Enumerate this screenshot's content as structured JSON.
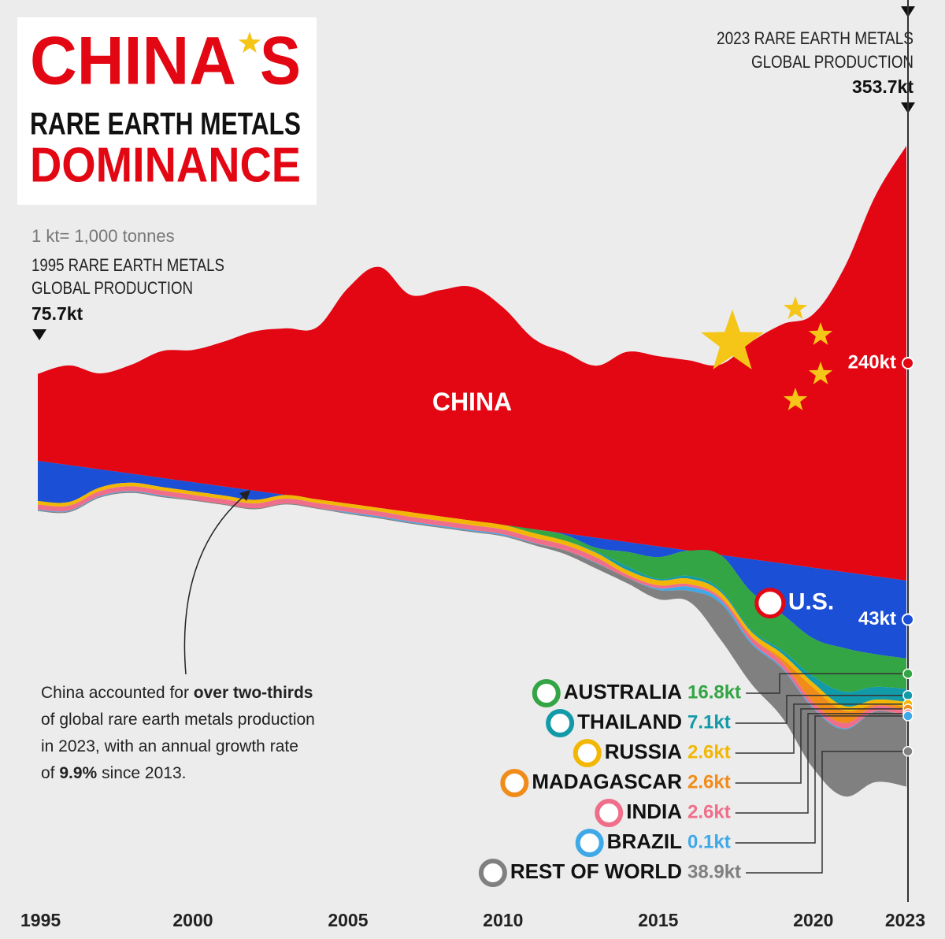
{
  "title": {
    "line1_a": "CHINA",
    "line1_b": "S",
    "line2": "RARE EARTH METALS",
    "line3": "DOMINANCE"
  },
  "annotations": {
    "unit_note": "1 kt= 1,000 tonnes",
    "start_line1": "1995 RARE EARTH METALS",
    "start_line2": "GLOBAL PRODUCTION",
    "start_total": "75.7kt",
    "end_line1": "2023 RARE EARTH METALS",
    "end_line2": "GLOBAL PRODUCTION",
    "end_total": "353.7kt",
    "note": [
      [
        {
          "text": "China accounted for ",
          "bold": false
        },
        {
          "text": "over two-thirds",
          "bold": true
        }
      ],
      [
        {
          "text": "of global rare earth metals production",
          "bold": false
        }
      ],
      [
        {
          "text": "in 2023, with an annual growth rate",
          "bold": false
        }
      ],
      [
        {
          "text": "of ",
          "bold": false
        },
        {
          "text": "9.9%",
          "bold": true
        },
        {
          "text": " since 2013.",
          "bold": false
        }
      ]
    ]
  },
  "chart_data": {
    "type": "stream",
    "x": [
      1995,
      1996,
      1997,
      1998,
      1999,
      2000,
      2001,
      2002,
      2003,
      2004,
      2005,
      2006,
      2007,
      2008,
      2009,
      2010,
      2011,
      2012,
      2013,
      2014,
      2015,
      2016,
      2017,
      2018,
      2019,
      2020,
      2021,
      2022,
      2023
    ],
    "xlim": [
      1995,
      2023
    ],
    "xticks": [
      1995,
      2000,
      2005,
      2010,
      2015,
      2020,
      2023
    ],
    "series": [
      {
        "name": "CHINA",
        "color": "#e30613",
        "end_label": "240kt",
        "values": [
          48,
          55,
          53,
          60,
          70,
          73,
          80,
          88,
          92,
          95,
          119,
          133,
          120,
          125,
          129,
          120,
          105,
          100,
          95,
          105,
          105,
          105,
          105,
          120,
          132,
          140,
          168,
          210,
          240
        ]
      },
      {
        "name": "U.S.",
        "color": "#1a4fd6",
        "end_label": "43kt",
        "values": [
          22.2,
          20.4,
          10,
          5,
          5,
          5,
          5,
          5,
          0,
          0,
          0,
          0,
          0,
          0,
          0,
          0,
          0,
          0.8,
          5.5,
          5.4,
          5.9,
          0,
          0,
          18,
          28,
          39,
          42,
          43,
          43
        ]
      },
      {
        "name": "AUSTRALIA",
        "color": "#33a544",
        "end_label": "16.8kt",
        "values": [
          0,
          0,
          0,
          0,
          0,
          0,
          0,
          0,
          0,
          0,
          0,
          0,
          0,
          0,
          0,
          0,
          2.2,
          3.2,
          2,
          8,
          12,
          14,
          19,
          21,
          20,
          21,
          24,
          18,
          16.8
        ]
      },
      {
        "name": "THAILAND",
        "color": "#139aa8",
        "end_label": "7.1kt",
        "values": [
          0,
          0,
          0,
          0,
          0,
          0,
          0,
          0,
          0,
          0,
          0,
          0,
          0,
          0,
          0,
          0,
          0,
          0,
          0.8,
          2.1,
          0.8,
          1.5,
          1.3,
          1,
          1.9,
          3.6,
          8,
          7.1,
          7.1
        ]
      },
      {
        "name": "RUSSIA",
        "color": "#f2b705",
        "end_label": "2.6kt",
        "values": [
          2,
          2,
          2,
          2,
          2,
          2,
          2,
          2,
          2,
          2,
          2,
          2,
          2.5,
          2.5,
          2.5,
          2.5,
          2.5,
          2.4,
          2.5,
          2.5,
          2.8,
          3,
          3,
          2.7,
          2.7,
          2.7,
          2.6,
          2.6,
          2.6
        ]
      },
      {
        "name": "MADAGASCAR",
        "color": "#f08c1a",
        "end_label": "2.6kt",
        "values": [
          0,
          0,
          0,
          0,
          0,
          0,
          0,
          0,
          0,
          0,
          0,
          0,
          0,
          0,
          0,
          0,
          0,
          0,
          0,
          0,
          0,
          0,
          0,
          0,
          2,
          8,
          6.8,
          0.9,
          2.6
        ]
      },
      {
        "name": "INDIA",
        "color": "#ef6f8a",
        "end_label": "2.6kt",
        "values": [
          2.7,
          2.7,
          2.7,
          2.7,
          2.7,
          2.7,
          2.7,
          2.7,
          2.7,
          2.7,
          2.7,
          2.7,
          2.7,
          2.7,
          2.7,
          2.7,
          2.8,
          2.9,
          2.9,
          1.7,
          1.7,
          1.5,
          1.5,
          2.9,
          2.9,
          2.9,
          2.9,
          2.9,
          2.6
        ]
      },
      {
        "name": "BRAZIL",
        "color": "#3fa9e8",
        "end_label": "0.1kt",
        "values": [
          0.4,
          0.4,
          0.4,
          0.4,
          0.4,
          0,
          0,
          0,
          0,
          0,
          0.5,
          0.6,
          0.6,
          0.6,
          0.6,
          0.6,
          0.3,
          0.1,
          0.3,
          0,
          0.9,
          2.2,
          1.7,
          1.1,
          0.7,
          0.6,
          0.5,
          0.1,
          0.1
        ]
      },
      {
        "name": "REST OF WORLD",
        "color": "#808080",
        "end_label": "38.9kt",
        "values": [
          0.4,
          0.5,
          0.5,
          0.5,
          0.5,
          0.5,
          0.5,
          0.5,
          0.5,
          0.5,
          0.5,
          0.5,
          0.5,
          0.5,
          0.5,
          0.5,
          1,
          2,
          3,
          3,
          5,
          6,
          20,
          22,
          27,
          33,
          37,
          39,
          38.9
        ]
      }
    ]
  }
}
